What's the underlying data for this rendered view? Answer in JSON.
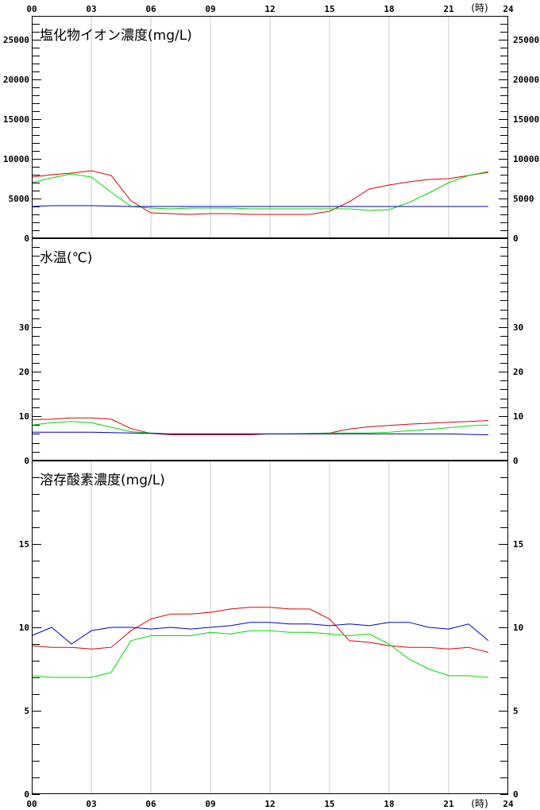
{
  "x_axis": {
    "labels": [
      "00",
      "03",
      "06",
      "09",
      "12",
      "15",
      "18",
      "21",
      "24"
    ],
    "unit": "(時)"
  },
  "colors": {
    "red": "#e00000",
    "green": "#00dd00",
    "blue": "#0000cc",
    "grid": "#cccccc"
  },
  "chart_data": [
    {
      "type": "line",
      "title": "塩化物イオン濃度(mg/L)",
      "ylim": [
        0,
        28000
      ],
      "yticks": [
        0,
        5000,
        10000,
        15000,
        20000,
        25000
      ],
      "xlim": [
        0,
        24
      ],
      "grid": "vertical",
      "series": [
        {
          "color": "red",
          "x": [
            0,
            1,
            2,
            3,
            4,
            5,
            6,
            7,
            8,
            9,
            10,
            11,
            12,
            13,
            14,
            15,
            16,
            17,
            18,
            19,
            20,
            21,
            22,
            23
          ],
          "y": [
            7700,
            8000,
            8200,
            8500,
            7900,
            4700,
            3200,
            3100,
            3000,
            3100,
            3100,
            3000,
            3000,
            3000,
            3000,
            3400,
            4600,
            6200,
            6700,
            7100,
            7400,
            7500,
            7900,
            8300
          ]
        },
        {
          "color": "green",
          "x": [
            0,
            1,
            2,
            3,
            4,
            5,
            6,
            7,
            8,
            9,
            10,
            11,
            12,
            13,
            14,
            15,
            16,
            17,
            18,
            19,
            20,
            21,
            22,
            23
          ],
          "y": [
            7000,
            7600,
            8100,
            7700,
            5800,
            4000,
            3800,
            3700,
            3800,
            3800,
            3800,
            3700,
            3700,
            3700,
            3700,
            3700,
            3700,
            3500,
            3600,
            4500,
            5700,
            7000,
            7900,
            8400
          ]
        },
        {
          "color": "blue",
          "x": [
            0,
            1,
            2,
            3,
            4,
            5,
            6,
            7,
            8,
            9,
            10,
            11,
            12,
            13,
            14,
            15,
            16,
            17,
            18,
            19,
            20,
            21,
            22,
            23
          ],
          "y": [
            4000,
            4100,
            4100,
            4100,
            4050,
            4000,
            4000,
            4000,
            4000,
            4000,
            4000,
            4000,
            4000,
            4000,
            4000,
            4000,
            4000,
            4000,
            4000,
            4000,
            4000,
            4000,
            4000,
            4000
          ]
        }
      ]
    },
    {
      "type": "line",
      "title": "水温(℃)",
      "ylim": [
        0,
        50
      ],
      "yticks": [
        0,
        10,
        20,
        30
      ],
      "xlim": [
        0,
        24
      ],
      "grid": "none",
      "series": [
        {
          "color": "red",
          "x": [
            0,
            1,
            2,
            3,
            4,
            5,
            6,
            7,
            8,
            9,
            10,
            11,
            12,
            13,
            14,
            15,
            16,
            17,
            18,
            19,
            20,
            21,
            22,
            23
          ],
          "y": [
            9.2,
            9.3,
            9.6,
            9.6,
            9.3,
            7.2,
            6.1,
            5.8,
            5.8,
            5.8,
            5.8,
            5.8,
            6.0,
            6.0,
            6.0,
            6.2,
            7.1,
            7.6,
            7.9,
            8.2,
            8.4,
            8.6,
            8.8,
            9.0
          ]
        },
        {
          "color": "green",
          "x": [
            0,
            1,
            2,
            3,
            4,
            5,
            6,
            7,
            8,
            9,
            10,
            11,
            12,
            13,
            14,
            15,
            16,
            17,
            18,
            19,
            20,
            21,
            22,
            23
          ],
          "y": [
            8.0,
            8.5,
            8.8,
            8.5,
            7.5,
            6.5,
            6.2,
            6.0,
            6.0,
            6.0,
            6.0,
            6.0,
            6.0,
            6.0,
            6.1,
            6.2,
            6.2,
            6.2,
            6.4,
            6.7,
            7.0,
            7.4,
            7.8,
            8.0
          ]
        },
        {
          "color": "blue",
          "x": [
            0,
            1,
            2,
            3,
            4,
            5,
            6,
            7,
            8,
            9,
            10,
            11,
            12,
            13,
            14,
            15,
            16,
            17,
            18,
            19,
            20,
            21,
            22,
            23
          ],
          "y": [
            6.4,
            6.4,
            6.4,
            6.4,
            6.3,
            6.2,
            6.1,
            6.0,
            6.0,
            6.0,
            6.0,
            6.0,
            6.0,
            6.0,
            6.0,
            6.0,
            6.0,
            6.0,
            6.0,
            6.0,
            6.0,
            6.0,
            5.9,
            5.8
          ]
        }
      ]
    },
    {
      "type": "line",
      "title": "溶存酸素濃度(mg/L)",
      "ylim": [
        0,
        20
      ],
      "yticks": [
        0,
        5,
        10,
        15
      ],
      "xlim": [
        0,
        24
      ],
      "grid": "vertical",
      "series": [
        {
          "color": "red",
          "x": [
            0,
            1,
            2,
            3,
            4,
            5,
            6,
            7,
            8,
            9,
            10,
            11,
            12,
            13,
            14,
            15,
            16,
            17,
            18,
            19,
            20,
            21,
            22,
            23
          ],
          "y": [
            8.9,
            8.8,
            8.8,
            8.7,
            8.8,
            9.8,
            10.5,
            10.8,
            10.8,
            10.9,
            11.1,
            11.2,
            11.2,
            11.1,
            11.1,
            10.5,
            9.2,
            9.1,
            8.9,
            8.8,
            8.8,
            8.7,
            8.8,
            8.5
          ]
        },
        {
          "color": "green",
          "x": [
            0,
            1,
            2,
            3,
            4,
            5,
            6,
            7,
            8,
            9,
            10,
            11,
            12,
            13,
            14,
            15,
            16,
            17,
            18,
            19,
            20,
            21,
            22,
            23
          ],
          "y": [
            7.1,
            7.0,
            7.0,
            7.0,
            7.3,
            9.2,
            9.5,
            9.5,
            9.5,
            9.7,
            9.6,
            9.8,
            9.8,
            9.7,
            9.7,
            9.6,
            9.5,
            9.6,
            9.0,
            8.1,
            7.5,
            7.1,
            7.1,
            7.0
          ]
        },
        {
          "color": "blue",
          "x": [
            0,
            1,
            2,
            3,
            4,
            5,
            6,
            7,
            8,
            9,
            10,
            11,
            12,
            13,
            14,
            15,
            16,
            17,
            18,
            19,
            20,
            21,
            22,
            23
          ],
          "y": [
            9.5,
            10.0,
            9.0,
            9.8,
            10.0,
            10.0,
            9.9,
            10.0,
            9.9,
            10.0,
            10.1,
            10.3,
            10.3,
            10.2,
            10.2,
            10.1,
            10.2,
            10.1,
            10.3,
            10.3,
            10.0,
            9.9,
            10.2,
            9.2
          ]
        }
      ]
    }
  ]
}
